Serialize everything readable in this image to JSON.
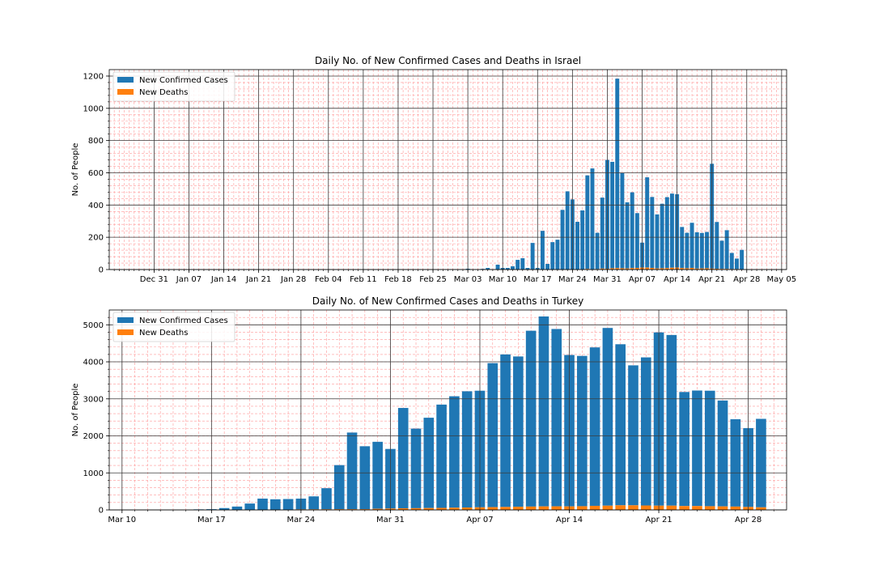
{
  "chart_data": [
    {
      "type": "bar",
      "stacked": true,
      "title": "Daily No. of New Confirmed Cases and Deaths in Israel",
      "xlabel": "",
      "ylabel": "No. of People",
      "x_start": "2019-12-26",
      "xlim": [
        "2019-12-22",
        "2020-05-06"
      ],
      "ylim": [
        0,
        1240
      ],
      "x_ticks": [
        {
          "date": "2019-12-31",
          "label": "Dec 31"
        },
        {
          "date": "2020-01-07",
          "label": "Jan 07"
        },
        {
          "date": "2020-01-14",
          "label": "Jan 14"
        },
        {
          "date": "2020-01-21",
          "label": "Jan 21"
        },
        {
          "date": "2020-01-28",
          "label": "Jan 28"
        },
        {
          "date": "2020-02-04",
          "label": "Feb 04"
        },
        {
          "date": "2020-02-11",
          "label": "Feb 11"
        },
        {
          "date": "2020-02-18",
          "label": "Feb 18"
        },
        {
          "date": "2020-02-25",
          "label": "Feb 25"
        },
        {
          "date": "2020-03-03",
          "label": "Mar 03"
        },
        {
          "date": "2020-03-10",
          "label": "Mar 10"
        },
        {
          "date": "2020-03-17",
          "label": "Mar 17"
        },
        {
          "date": "2020-03-24",
          "label": "Mar 24"
        },
        {
          "date": "2020-03-31",
          "label": "Mar 31"
        },
        {
          "date": "2020-04-07",
          "label": "Apr 07"
        },
        {
          "date": "2020-04-14",
          "label": "Apr 14"
        },
        {
          "date": "2020-04-21",
          "label": "Apr 21"
        },
        {
          "date": "2020-04-28",
          "label": "Apr 28"
        },
        {
          "date": "2020-05-05",
          "label": "May 05"
        }
      ],
      "y_ticks": [
        0,
        200,
        400,
        600,
        800,
        1000,
        1200
      ],
      "grid": true,
      "legend_position": "top-left",
      "series": [
        {
          "name": "New Confirmed Cases",
          "color": "#1f77b4",
          "values": [
            0,
            0,
            0,
            0,
            0,
            0,
            0,
            0,
            0,
            0,
            0,
            0,
            0,
            0,
            0,
            0,
            0,
            0,
            0,
            0,
            0,
            0,
            0,
            0,
            0,
            0,
            0,
            0,
            0,
            0,
            0,
            0,
            0,
            0,
            0,
            0,
            0,
            0,
            0,
            0,
            0,
            0,
            0,
            0,
            0,
            0,
            0,
            0,
            0,
            0,
            0,
            0,
            0,
            0,
            0,
            0,
            0,
            0,
            0,
            0,
            0,
            0,
            0,
            0,
            0,
            0,
            0,
            0,
            5,
            0,
            0,
            4,
            10,
            2,
            30,
            10,
            10,
            20,
            60,
            70,
            10,
            165,
            10,
            240,
            35,
            170,
            185,
            370,
            485,
            435,
            295,
            365,
            580,
            625,
            225,
            440,
            675,
            660,
            1175,
            590,
            410,
            470,
            340,
            155,
            560,
            440,
            335,
            400,
            440,
            460,
            455,
            255,
            220,
            280,
            225,
            220,
            225,
            650,
            290,
            175,
            240,
            100,
            65,
            120
          ]
        },
        {
          "name": "New Deaths",
          "color": "#ff7f0e",
          "values": [
            0,
            0,
            0,
            0,
            0,
            0,
            0,
            0,
            0,
            0,
            0,
            0,
            0,
            0,
            0,
            0,
            0,
            0,
            0,
            0,
            0,
            0,
            0,
            0,
            0,
            0,
            0,
            0,
            0,
            0,
            0,
            0,
            0,
            0,
            0,
            0,
            0,
            0,
            0,
            0,
            0,
            0,
            0,
            0,
            0,
            0,
            0,
            0,
            0,
            0,
            0,
            0,
            0,
            0,
            0,
            0,
            0,
            0,
            0,
            0,
            0,
            0,
            0,
            0,
            0,
            0,
            0,
            0,
            0,
            0,
            0,
            0,
            0,
            0,
            0,
            0,
            0,
            0,
            0,
            0,
            0,
            0,
            0,
            0,
            0,
            0,
            0,
            0,
            0,
            0,
            1,
            2,
            4,
            2,
            3,
            6,
            5,
            8,
            9,
            8,
            7,
            9,
            10,
            12,
            12,
            10,
            7,
            8,
            9,
            11,
            12,
            9,
            8,
            10,
            6,
            7,
            8,
            6,
            5,
            4,
            4,
            3,
            3,
            2
          ]
        }
      ]
    },
    {
      "type": "bar",
      "stacked": true,
      "title": "Daily No. of New Confirmed Cases and Deaths in Turkey",
      "xlabel": "",
      "ylabel": "No. of People",
      "x_start": "2020-03-10",
      "xlim": [
        "2020-03-09",
        "2020-05-01"
      ],
      "ylim": [
        0,
        5400
      ],
      "x_ticks": [
        {
          "date": "2020-03-10",
          "label": "Mar 10"
        },
        {
          "date": "2020-03-17",
          "label": "Mar 17"
        },
        {
          "date": "2020-03-24",
          "label": "Mar 24"
        },
        {
          "date": "2020-03-31",
          "label": "Mar 31"
        },
        {
          "date": "2020-04-07",
          "label": "Apr 07"
        },
        {
          "date": "2020-04-14",
          "label": "Apr 14"
        },
        {
          "date": "2020-04-21",
          "label": "Apr 21"
        },
        {
          "date": "2020-04-28",
          "label": "Apr 28"
        }
      ],
      "y_ticks": [
        0,
        1000,
        2000,
        3000,
        4000,
        5000
      ],
      "grid": true,
      "legend_position": "top-left",
      "series": [
        {
          "name": "New Confirmed Cases",
          "color": "#1f77b4",
          "values": [
            0,
            0,
            0,
            0,
            0,
            0,
            15,
            20,
            50,
            90,
            170,
            300,
            280,
            285,
            290,
            350,
            570,
            1190,
            2070,
            1700,
            1810,
            1610,
            2710,
            2150,
            2440,
            2790,
            3010,
            3140,
            3150,
            3890,
            4120,
            4060,
            4750,
            5130,
            4790,
            4090,
            4060,
            4280,
            4800,
            4350,
            3780,
            4000,
            4680,
            4610,
            3080,
            3120,
            3120,
            2860,
            2360,
            2130,
            2390
          ]
        },
        {
          "name": "New Deaths",
          "color": "#ff7f0e",
          "values": [
            0,
            0,
            0,
            0,
            0,
            0,
            0,
            0,
            0,
            1,
            2,
            5,
            7,
            9,
            15,
            16,
            17,
            20,
            20,
            20,
            30,
            37,
            44,
            46,
            50,
            55,
            60,
            65,
            70,
            75,
            80,
            85,
            90,
            95,
            97,
            95,
            100,
            110,
            115,
            125,
            125,
            120,
            115,
            115,
            105,
            105,
            100,
            95,
            90,
            80,
            70
          ]
        }
      ]
    }
  ]
}
